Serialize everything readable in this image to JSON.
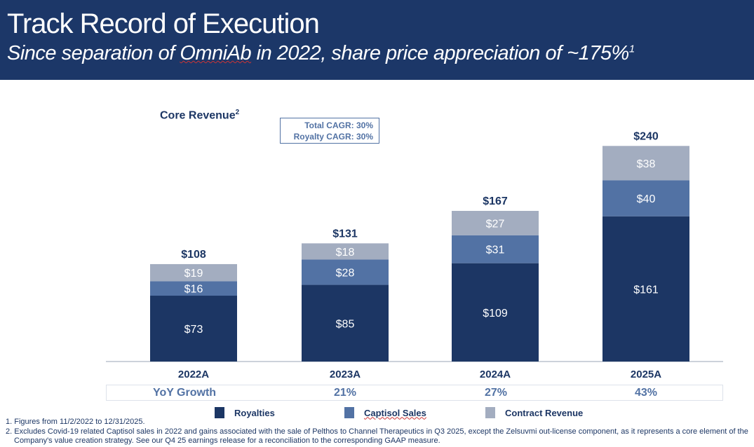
{
  "header": {
    "title": "Track Record of Execution",
    "subtitle_pre": "Since separation of ",
    "subtitle_link": "OmniAb",
    "subtitle_post": " in 2022, share price appreciation of ~175%",
    "subtitle_sup": "1"
  },
  "chart_data": {
    "type": "bar",
    "stacked": true,
    "title": "Core Revenue",
    "title_sup": "2",
    "categories": [
      "2022A",
      "2023A",
      "2024A",
      "2025A"
    ],
    "series": [
      {
        "name": "Royalties",
        "color": "#1c3664",
        "values": [
          73,
          85,
          109,
          161
        ]
      },
      {
        "name": "Captisol Sales",
        "color": "#5272a4",
        "values": [
          16,
          28,
          31,
          40
        ]
      },
      {
        "name": "Contract Revenue",
        "color": "#a3adc0",
        "values": [
          19,
          18,
          27,
          38
        ]
      }
    ],
    "totals": [
      "$108",
      "$131",
      "$167",
      "$240"
    ],
    "value_prefix": "$",
    "ylim": [
      0,
      240
    ],
    "grid": false,
    "legend": "bottom",
    "annotations": [
      "Total CAGR: 30%",
      "Royalty CAGR: 30%"
    ]
  },
  "yoy": {
    "label": "YoY Growth",
    "values": [
      "21%",
      "27%",
      "43%"
    ]
  },
  "footnotes": [
    "1. Figures from 11/2/2022 to 12/31/2025.",
    "2. Excludes Covid-19 related Captisol sales in 2022 and gains associated with the sale of Pelthos to Channel Therapeutics in Q3 2025, except the Zelsuvmi out-license component, as it represents a core element of the Company's value creation strategy.  See our Q4 25 earnings release for a reconciliation to the corresponding GAAP measure."
  ]
}
